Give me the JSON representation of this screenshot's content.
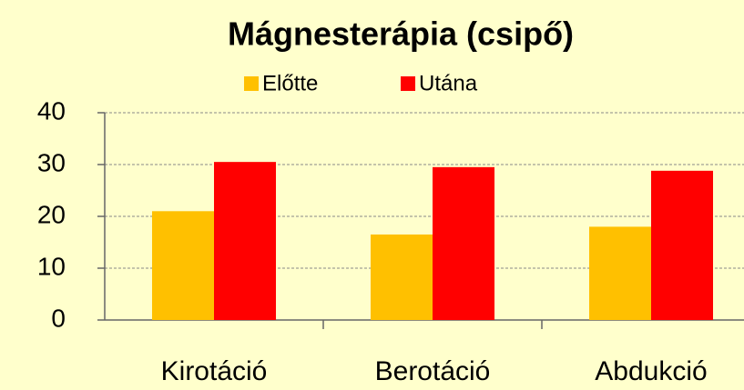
{
  "chart_data": {
    "type": "bar",
    "title": "Mágnesterápia (csipő)",
    "categories": [
      "Kirotáció",
      "Berotáció",
      "Abdukció"
    ],
    "series": [
      {
        "name": "Előtte",
        "color": "#ffc000",
        "values": [
          21,
          16.5,
          18
        ]
      },
      {
        "name": "Utána",
        "color": "#ff0000",
        "values": [
          30.5,
          29.5,
          28.8
        ]
      }
    ],
    "ylim": [
      0,
      40
    ],
    "yticks": [
      0,
      10,
      20,
      30,
      40
    ],
    "grid": true
  }
}
